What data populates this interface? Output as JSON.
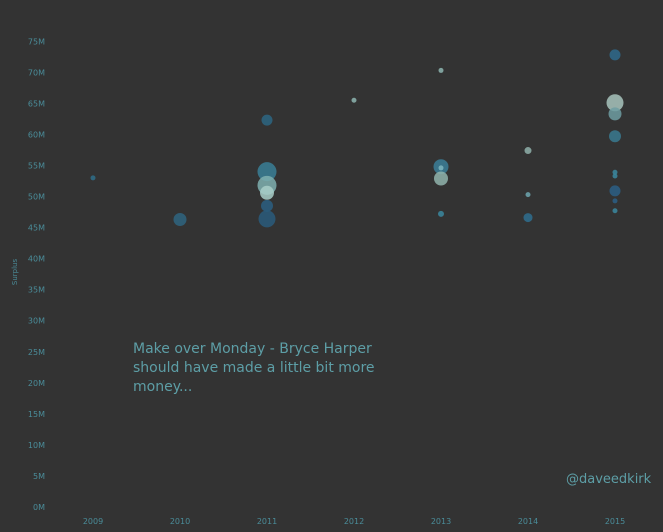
{
  "chart_data": {
    "type": "scatter",
    "title": "",
    "xlabel": "",
    "ylabel": "Surplus",
    "x_ticks": [
      "2009",
      "2010",
      "2011",
      "2012",
      "2013",
      "2014",
      "2015"
    ],
    "y_ticks": [
      {
        "label": "0M",
        "value": 0
      },
      {
        "label": "5M",
        "value": 5
      },
      {
        "label": "10M",
        "value": 10
      },
      {
        "label": "15M",
        "value": 15
      },
      {
        "label": "20M",
        "value": 20
      },
      {
        "label": "25M",
        "value": 25
      },
      {
        "label": "30M",
        "value": 30
      },
      {
        "label": "35M",
        "value": 35
      },
      {
        "label": "40M",
        "value": 40
      },
      {
        "label": "45M",
        "value": 45
      },
      {
        "label": "50M",
        "value": 50
      },
      {
        "label": "55M",
        "value": 55
      },
      {
        "label": "60M",
        "value": 60
      },
      {
        "label": "65M",
        "value": 65
      },
      {
        "label": "70M",
        "value": 70
      },
      {
        "label": "75M",
        "value": 75
      }
    ],
    "ylim": [
      0,
      77
    ],
    "grid": false,
    "points": [
      {
        "x": "2009",
        "y": 53.0,
        "size": 2.5,
        "color": "#2f6f8a"
      },
      {
        "x": "2010",
        "y": 46.3,
        "size": 6.5,
        "color": "#2f6580"
      },
      {
        "x": "2011",
        "y": 62.3,
        "size": 5.5,
        "color": "#2d6682"
      },
      {
        "x": "2011",
        "y": 54.0,
        "size": 9.5,
        "color": "#3a7f96"
      },
      {
        "x": "2011",
        "y": 51.8,
        "size": 9.5,
        "color": "#7fb0b0"
      },
      {
        "x": "2011",
        "y": 50.6,
        "size": 7.0,
        "color": "#a9cfc9"
      },
      {
        "x": "2011",
        "y": 48.5,
        "size": 6.0,
        "color": "#2b5f82"
      },
      {
        "x": "2011",
        "y": 46.4,
        "size": 8.5,
        "color": "#2a5c7c"
      },
      {
        "x": "2012",
        "y": 65.5,
        "size": 2.5,
        "color": "#8db5b0"
      },
      {
        "x": "2013",
        "y": 70.3,
        "size": 2.5,
        "color": "#8db5b0"
      },
      {
        "x": "2013",
        "y": 54.8,
        "size": 7.5,
        "color": "#3b7f99"
      },
      {
        "x": "2013",
        "y": 54.6,
        "size": 2.5,
        "color": "#7fb6bf"
      },
      {
        "x": "2013",
        "y": 52.9,
        "size": 7.0,
        "color": "#90b4ad"
      },
      {
        "x": "2013",
        "y": 47.2,
        "size": 3.0,
        "color": "#3b88a0"
      },
      {
        "x": "2014",
        "y": 57.4,
        "size": 3.5,
        "color": "#8fb0aa"
      },
      {
        "x": "2014",
        "y": 50.3,
        "size": 2.5,
        "color": "#6fa7b0"
      },
      {
        "x": "2014",
        "y": 46.6,
        "size": 4.5,
        "color": "#2f6f8f"
      },
      {
        "x": "2015",
        "y": 72.8,
        "size": 5.5,
        "color": "#2f6a8c"
      },
      {
        "x": "2015",
        "y": 65.1,
        "size": 8.5,
        "color": "#a8c4bd"
      },
      {
        "x": "2015",
        "y": 63.3,
        "size": 6.5,
        "color": "#6f9ea2"
      },
      {
        "x": "2015",
        "y": 59.7,
        "size": 6.0,
        "color": "#3a7a90"
      },
      {
        "x": "2015",
        "y": 53.9,
        "size": 2.5,
        "color": "#3b88a0"
      },
      {
        "x": "2015",
        "y": 53.3,
        "size": 2.5,
        "color": "#3b88a0"
      },
      {
        "x": "2015",
        "y": 50.9,
        "size": 5.5,
        "color": "#2c5f86"
      },
      {
        "x": "2015",
        "y": 49.3,
        "size": 2.5,
        "color": "#2c5f86"
      },
      {
        "x": "2015",
        "y": 47.7,
        "size": 2.5,
        "color": "#3b88a0"
      }
    ]
  },
  "annotation": "Make over Monday - Bryce Harper should have made a little bit more money...",
  "credit": "@daveedkirk",
  "colors": {
    "background": "#333333",
    "axis_text": "#4a8c99",
    "annotation_text": "#5d9ea6"
  }
}
